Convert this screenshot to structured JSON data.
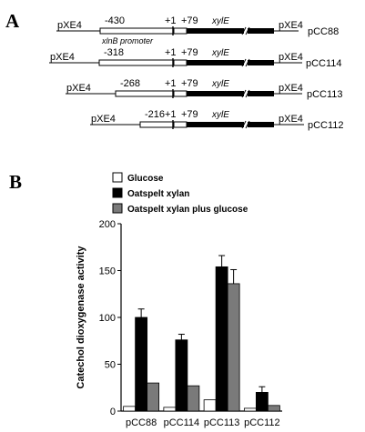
{
  "panel_a": {
    "letter": "A",
    "vector_label": "pXE4",
    "promoter_label": "xlnB promoter",
    "gene_label": "xylE",
    "tss_label": "+1",
    "atg_label": "+79",
    "constructs": [
      {
        "name": "pCC88",
        "start": "-430"
      },
      {
        "name": "pCC114",
        "start": "-318"
      },
      {
        "name": "pCC113",
        "start": "-268"
      },
      {
        "name": "pCC112",
        "start": "-216"
      }
    ]
  },
  "panel_b": {
    "letter": "B",
    "legend": [
      {
        "label": "Glucose",
        "color": "#ffffff"
      },
      {
        "label": "Oatspelt  xylan",
        "color": "#000000"
      },
      {
        "label": "Oatspelt  xylan  plus  glucose",
        "color": "#7a7a7a"
      }
    ]
  },
  "chart_data": {
    "type": "bar",
    "title": "",
    "xlabel": "",
    "ylabel": "Catechol  dioxygenase  activity",
    "ylim": [
      0,
      200
    ],
    "yticks": [
      "0",
      "50",
      "100",
      "150",
      "200"
    ],
    "categories": [
      "pCC88",
      "pCC114",
      "pCC113",
      "pCC112"
    ],
    "series": [
      {
        "name": "Glucose",
        "color": "#ffffff",
        "values": [
          5,
          4,
          12,
          3
        ],
        "errors": [
          0,
          0,
          0,
          0
        ]
      },
      {
        "name": "Oatspelt  xylan",
        "color": "#000000",
        "values": [
          100,
          76,
          154,
          20
        ],
        "errors": [
          9,
          6,
          12,
          6
        ]
      },
      {
        "name": "Oatspelt  xylan  plus  glucose",
        "color": "#7a7a7a",
        "values": [
          30,
          27,
          136,
          6
        ],
        "errors": [
          0,
          0,
          15,
          0
        ]
      }
    ],
    "grid": false,
    "legend_position": "top"
  }
}
